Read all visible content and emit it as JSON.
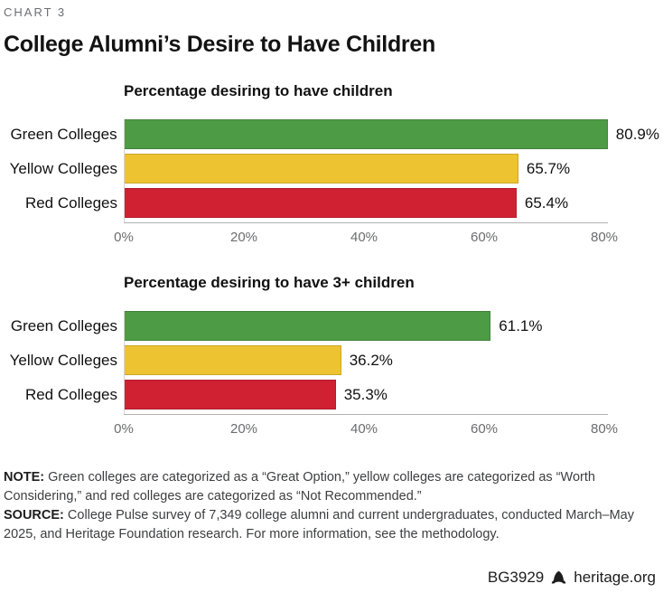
{
  "page": {
    "chart_label": "CHART 3",
    "title": "College Alumni’s Desire to Have Children"
  },
  "colors": {
    "green": "#4e9b45",
    "yellow": "#edc331",
    "red": "#d02133",
    "axis_line": "#b2b2b2",
    "tick_text": "#6b6c6e"
  },
  "chart_data": [
    {
      "type": "bar",
      "orientation": "horizontal",
      "title": "Percentage desiring to have children",
      "categories": [
        "Green Colleges",
        "Yellow Colleges",
        "Red Colleges"
      ],
      "values": [
        80.9,
        65.7,
        65.4
      ],
      "value_labels": [
        "80.9%",
        "65.7%",
        "65.4%"
      ],
      "bar_colors": [
        "#4e9b45",
        "#edc331",
        "#d02133"
      ],
      "x_ticks": [
        "0%",
        "20%",
        "40%",
        "60%",
        "80%"
      ],
      "xlim": [
        0,
        80
      ],
      "grid": false,
      "legend": "none"
    },
    {
      "type": "bar",
      "orientation": "horizontal",
      "title": "Percentage desiring to have 3+ children",
      "categories": [
        "Green Colleges",
        "Yellow Colleges",
        "Red Colleges"
      ],
      "values": [
        61.1,
        36.2,
        35.3
      ],
      "value_labels": [
        "61.1%",
        "36.2%",
        "35.3%"
      ],
      "bar_colors": [
        "#4e9b45",
        "#edc331",
        "#d02133"
      ],
      "x_ticks": [
        "0%",
        "20%",
        "40%",
        "60%",
        "80%"
      ],
      "xlim": [
        0,
        80
      ],
      "grid": false,
      "legend": "none"
    }
  ],
  "footnotes": {
    "note_label": "NOTE:",
    "note_text": " Green colleges are categorized as a “Great Option,” yellow colleges are categorized as “Worth Considering,” and red colleges are categorized as “Not Recommended.”",
    "source_label": "SOURCE:",
    "source_text": " College Pulse survey of 7,349 college alumni and current undergraduates, conducted March–May 2025, and Heritage Foundation research. For more information, see the methodology."
  },
  "footer": {
    "report_id": "BG3929",
    "site": "heritage.org",
    "logo_icon": "heritage-bell-icon"
  }
}
